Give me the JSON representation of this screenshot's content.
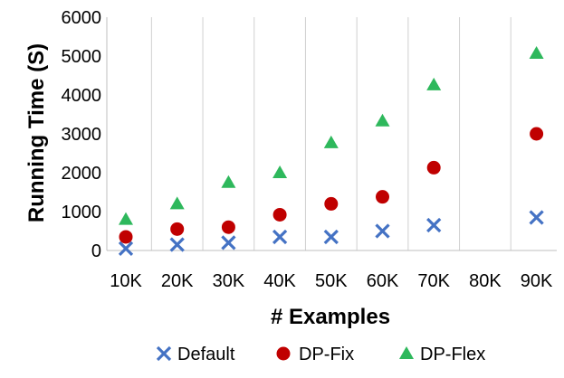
{
  "chart_data": {
    "type": "scatter",
    "categories": [
      "10K",
      "20K",
      "30K",
      "40K",
      "50K",
      "60K",
      "70K",
      "80K",
      "90K"
    ],
    "xlabel": "# Examples",
    "ylabel": "Running Time (S)",
    "ylim": [
      0,
      6000
    ],
    "yticks": [
      0,
      1000,
      2000,
      3000,
      4000,
      5000,
      6000
    ],
    "grid": "vertical",
    "legend_position": "bottom",
    "series": [
      {
        "name": "Default",
        "marker": "x",
        "color": "#4472C4",
        "values": [
          50,
          150,
          200,
          350,
          350,
          500,
          650,
          null,
          850
        ]
      },
      {
        "name": "DP-Fix",
        "marker": "circle",
        "color": "#C00000",
        "values": [
          350,
          550,
          600,
          920,
          1200,
          1380,
          2130,
          null,
          3000
        ]
      },
      {
        "name": "DP-Flex",
        "marker": "triangle",
        "color": "#2EB85C",
        "values": [
          800,
          1200,
          1750,
          2000,
          2770,
          3330,
          4260,
          null,
          5070
        ]
      }
    ]
  }
}
